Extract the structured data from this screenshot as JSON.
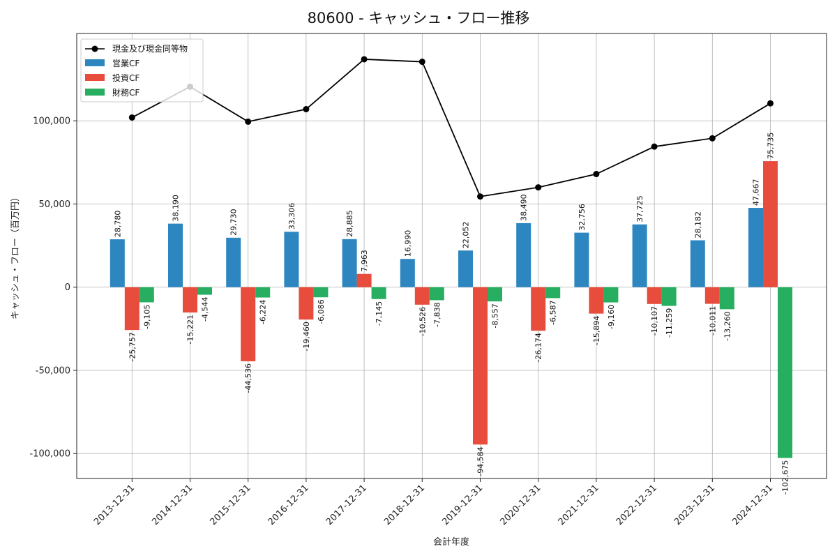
{
  "chart_data": {
    "type": "bar",
    "title": "80600 - キャッシュ・フロー推移",
    "xlabel": "会計年度",
    "ylabel": "キャッシュ・フロー（百万円）",
    "ylim": [
      -115000,
      152500
    ],
    "yticks": [
      -100000,
      -50000,
      0,
      50000,
      100000
    ],
    "ytick_labels": [
      "-100,000",
      "-50,000",
      "0",
      "50,000",
      "100,000"
    ],
    "grid": true,
    "legend_position": "top-left",
    "categories": [
      "2013-12-31",
      "2014-12-31",
      "2015-12-31",
      "2016-12-31",
      "2017-12-31",
      "2018-12-31",
      "2019-12-31",
      "2020-12-31",
      "2021-12-31",
      "2022-12-31",
      "2023-12-31",
      "2024-12-31"
    ],
    "series": [
      {
        "name": "営業CF",
        "kind": "bar",
        "color": "#2e86c1",
        "values": [
          28780,
          38190,
          29730,
          33306,
          28885,
          16990,
          22052,
          38490,
          32756,
          37725,
          28182,
          47667
        ],
        "labels": [
          "28,780",
          "38,190",
          "29,730",
          "33,306",
          "28,885",
          "16,990",
          "22,052",
          "38,490",
          "32,756",
          "37,725",
          "28,182",
          "47,667"
        ]
      },
      {
        "name": "投資CF",
        "kind": "bar",
        "color": "#e74c3c",
        "values": [
          -25757,
          -15221,
          -44536,
          -19460,
          7963,
          -10526,
          -94584,
          -26174,
          -15894,
          -10107,
          -10011,
          75735
        ],
        "labels": [
          "-25,757",
          "-15,221",
          "-44,536",
          "-19,460",
          "7,963",
          "-10,526",
          "-94,584",
          "-26,174",
          "-15,894",
          "-10,107",
          "-10,011",
          "75,735"
        ]
      },
      {
        "name": "財務CF",
        "kind": "bar",
        "color": "#27ae60",
        "values": [
          -9105,
          -4544,
          -6224,
          -6086,
          -7145,
          -7838,
          -8557,
          -6587,
          -9160,
          -11259,
          -13260,
          -102675
        ],
        "labels": [
          "-9,105",
          "-4,544",
          "-6,224",
          "-6,086",
          "-7,145",
          "-7,838",
          "-8,557",
          "-6,587",
          "-9,160",
          "-11,259",
          "-13,260",
          "-102,675"
        ]
      },
      {
        "name": "現金及び現金同等物",
        "kind": "line",
        "color": "#000000",
        "values": [
          102000,
          120500,
          99500,
          107000,
          137000,
          135500,
          54500,
          60000,
          68000,
          84500,
          89500,
          110500
        ]
      }
    ]
  }
}
